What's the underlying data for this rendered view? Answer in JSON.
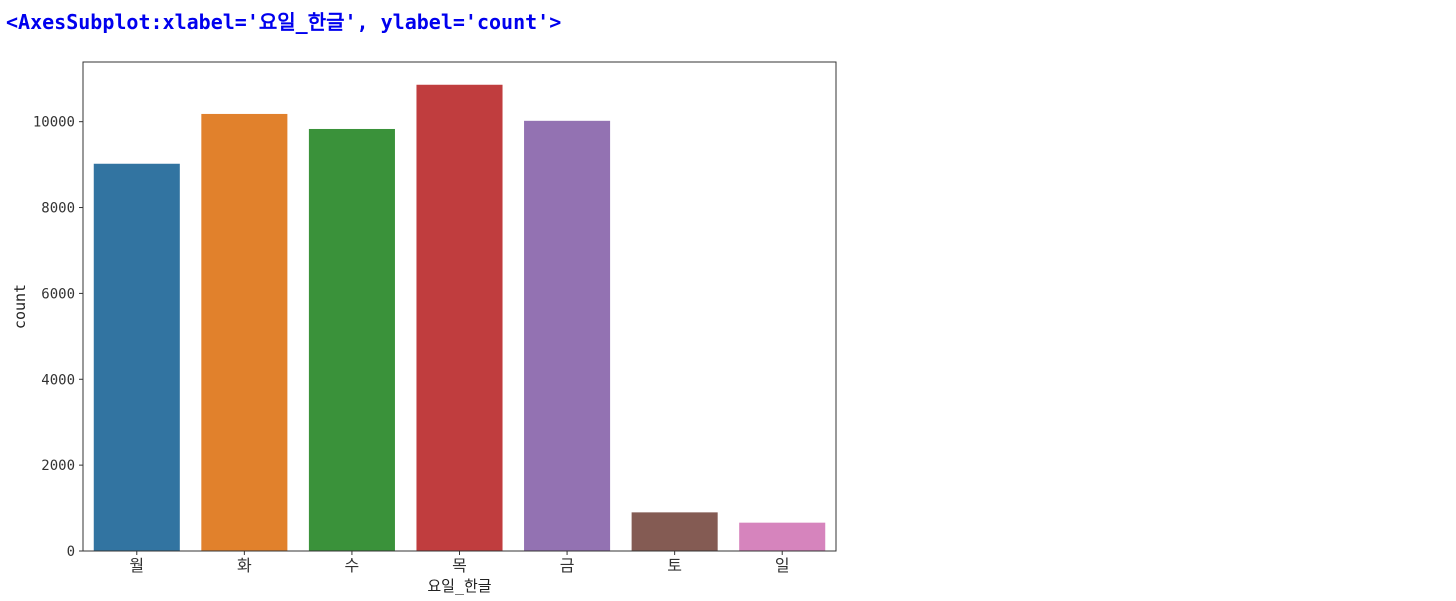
{
  "output_repr": "<AxesSubplot:xlabel='요일_한글', ylabel='count'>",
  "chart_data": {
    "type": "bar",
    "categories": [
      "월",
      "화",
      "수",
      "목",
      "금",
      "토",
      "일"
    ],
    "values": [
      9020,
      10180,
      9830,
      10860,
      10020,
      900,
      660
    ],
    "colors": [
      "#3274a1",
      "#e1812c",
      "#3a923a",
      "#c03d3e",
      "#9372b2",
      "#845b53",
      "#d684bd"
    ],
    "xlabel": "요일_한글",
    "ylabel": "count",
    "ylim": [
      0,
      11390
    ],
    "yticks": [
      0,
      2000,
      4000,
      6000,
      8000,
      10000
    ],
    "grid": false
  }
}
